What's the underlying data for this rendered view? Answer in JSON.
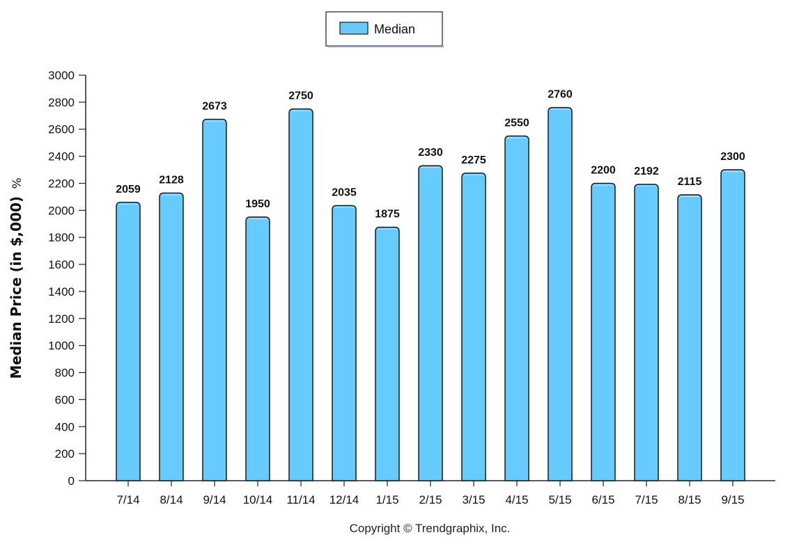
{
  "chart_data": {
    "type": "bar",
    "categories": [
      "7/14",
      "8/14",
      "9/14",
      "10/14",
      "11/14",
      "12/14",
      "1/15",
      "2/15",
      "3/15",
      "4/15",
      "5/15",
      "6/15",
      "7/15",
      "8/15",
      "9/15"
    ],
    "series": [
      {
        "name": "Median",
        "values": [
          2059,
          2128,
          2673,
          1950,
          2750,
          2035,
          1875,
          2330,
          2275,
          2550,
          2760,
          2200,
          2192,
          2115,
          2300
        ],
        "color": "#66ccff"
      }
    ],
    "ylabel": "Median Price (in $,000)",
    "ylabel_unit": "%",
    "ylim": [
      0,
      3000
    ],
    "yticks": [
      0,
      200,
      400,
      600,
      800,
      1000,
      1200,
      1400,
      1600,
      1800,
      2000,
      2200,
      2400,
      2600,
      2800,
      3000
    ],
    "legend_position": "top-center",
    "grid": false,
    "data_labels": true
  },
  "footer": {
    "copyright": "Copyright © Trendgraphix, Inc."
  },
  "colors": {
    "bar_fill": "#66ccff",
    "bar_stroke": "#1a1a1a",
    "axis": "#222222"
  }
}
